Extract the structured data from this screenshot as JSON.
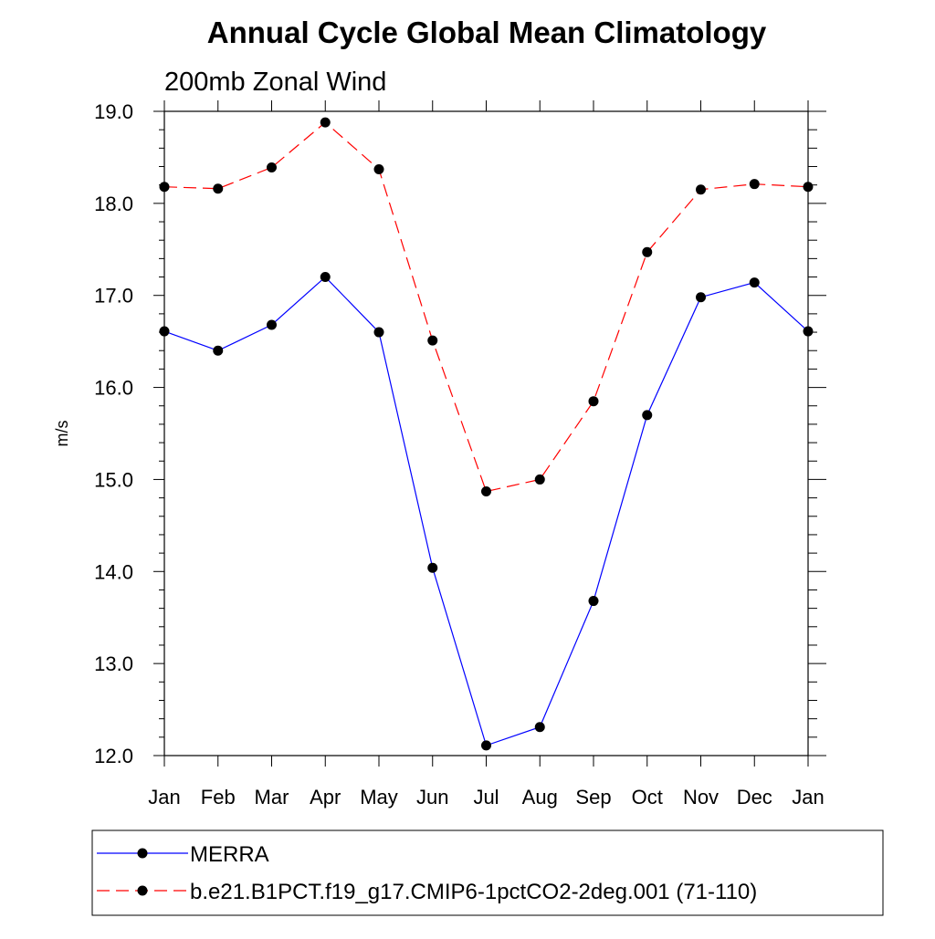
{
  "chart_data": {
    "type": "line",
    "title": "Annual Cycle Global Mean Climatology",
    "subtitle": "200mb Zonal Wind",
    "xlabel": "",
    "ylabel": "m/s",
    "categories": [
      "Jan",
      "Feb",
      "Mar",
      "Apr",
      "May",
      "Jun",
      "Jul",
      "Aug",
      "Sep",
      "Oct",
      "Nov",
      "Dec",
      "Jan"
    ],
    "yticks": [
      "12.0",
      "13.0",
      "14.0",
      "15.0",
      "16.0",
      "17.0",
      "18.0",
      "19.0"
    ],
    "ylim": [
      12.0,
      19.0
    ],
    "grid": false,
    "legend_position": "bottom",
    "series": [
      {
        "name": "MERRA",
        "color": "#0000ff",
        "dash": "solid",
        "values": [
          16.61,
          16.4,
          16.68,
          17.2,
          16.6,
          14.04,
          12.11,
          12.31,
          13.68,
          15.7,
          16.98,
          17.14,
          16.61
        ]
      },
      {
        "name": "b.e21.B1PCT.f19_g17.CMIP6-1pctCO2-2deg.001 (71-110)",
        "color": "#ff0000",
        "dash": "dashed",
        "values": [
          18.18,
          18.16,
          18.39,
          18.88,
          18.37,
          16.51,
          14.87,
          15.0,
          15.85,
          17.47,
          18.15,
          18.21,
          18.18
        ]
      }
    ]
  }
}
